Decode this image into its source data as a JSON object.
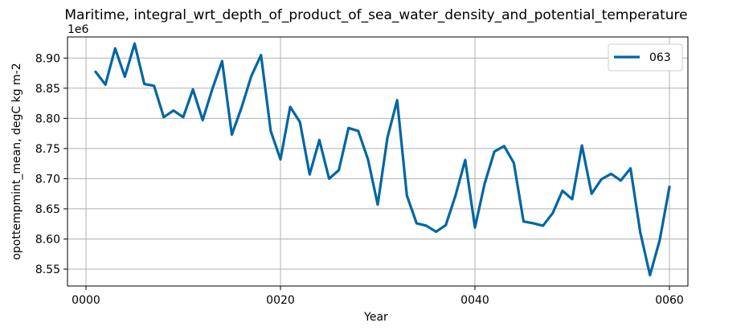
{
  "chart_data": {
    "type": "line",
    "title": "Maritime, integral_wrt_depth_of_product_of_sea_water_density_and_potential_temperature",
    "xlabel": "Year",
    "ylabel": "opottempmint_mean, degC kg m-2",
    "y_offset_label": "1e6",
    "xlim": [
      -1.9,
      61.9
    ],
    "ylim": [
      8.522,
      8.935
    ],
    "x_ticks": [
      0,
      20,
      40,
      60
    ],
    "x_tick_labels": [
      "0000",
      "0020",
      "0040",
      "0060"
    ],
    "y_ticks": [
      8.55,
      8.6,
      8.65,
      8.7,
      8.75,
      8.8,
      8.85,
      8.9
    ],
    "y_tick_labels": [
      "8.55",
      "8.60",
      "8.65",
      "8.70",
      "8.75",
      "8.80",
      "8.85",
      "8.90"
    ],
    "grid": true,
    "legend_position": "top-right",
    "series": [
      {
        "name": "063",
        "color": "#0066a2",
        "x": [
          1,
          2,
          3,
          4,
          5,
          6,
          7,
          8,
          9,
          10,
          11,
          12,
          13,
          14,
          15,
          16,
          17,
          18,
          19,
          20,
          21,
          22,
          23,
          24,
          25,
          26,
          27,
          28,
          29,
          30,
          31,
          32,
          33,
          34,
          35,
          36,
          37,
          38,
          39,
          40,
          41,
          42,
          43,
          44,
          45,
          46,
          47,
          48,
          49,
          50,
          51,
          52,
          53,
          54,
          55,
          56,
          57,
          58,
          59,
          60
        ],
        "values": [
          8.877,
          8.856,
          8.916,
          8.869,
          8.924,
          8.857,
          8.854,
          8.802,
          8.813,
          8.802,
          8.848,
          8.797,
          8.849,
          8.895,
          8.773,
          8.818,
          8.87,
          8.905,
          8.779,
          8.732,
          8.819,
          8.794,
          8.707,
          8.764,
          8.7,
          8.714,
          8.784,
          8.779,
          8.732,
          8.657,
          8.768,
          8.83,
          8.672,
          8.626,
          8.622,
          8.612,
          8.623,
          8.672,
          8.731,
          8.619,
          8.692,
          8.745,
          8.754,
          8.726,
          8.629,
          8.626,
          8.622,
          8.643,
          8.68,
          8.666,
          8.755,
          8.675,
          8.699,
          8.708,
          8.697,
          8.717,
          8.611,
          8.54,
          8.598,
          8.686
        ]
      }
    ]
  }
}
